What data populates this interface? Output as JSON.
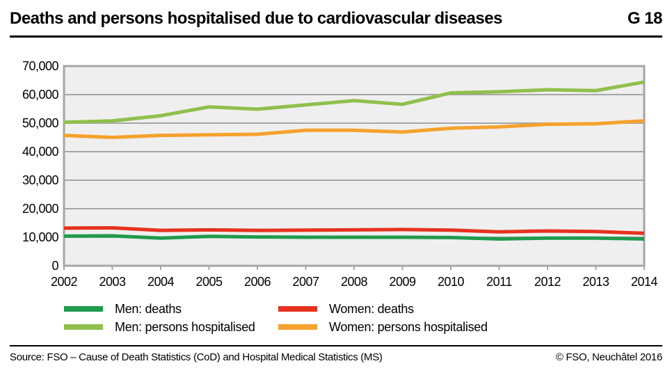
{
  "header": {
    "title": "Deaths and persons hospitalised due to cardiovascular diseases",
    "figure_code": "G 18"
  },
  "legend": {
    "items": [
      {
        "key": "men_deaths",
        "label": "Men: deaths"
      },
      {
        "key": "women_deaths",
        "label": "Women: deaths"
      },
      {
        "key": "men_hosp",
        "label": "Men: persons hospitalised"
      },
      {
        "key": "women_hosp",
        "label": "Women: persons hospitalised"
      }
    ]
  },
  "footer": {
    "source": "Source: FSO – Cause of Death Statistics (CoD) and Hospital Medical Statistics (MS)",
    "copyright": "© FSO, Neuchâtel 2016"
  },
  "chart_data": {
    "type": "line",
    "title": "Deaths and persons hospitalised due to cardiovascular diseases",
    "xlabel": "",
    "ylabel": "",
    "categories": [
      "2002",
      "2003",
      "2004",
      "2005",
      "2006",
      "2007",
      "2008",
      "2009",
      "2010",
      "2011",
      "2012",
      "2013",
      "2014"
    ],
    "series": [
      {
        "key": "men_hosp",
        "name": "Men: persons hospitalised",
        "color": "#8fc04c",
        "values": [
          50300,
          50800,
          52600,
          55700,
          54900,
          56400,
          57900,
          56600,
          60600,
          61000,
          61700,
          61400,
          64400
        ]
      },
      {
        "key": "women_hosp",
        "name": "Women: persons hospitalised",
        "color": "#f6a12d",
        "values": [
          45700,
          45000,
          45700,
          45900,
          46100,
          47500,
          47500,
          46900,
          48200,
          48700,
          49600,
          49800,
          50800
        ]
      },
      {
        "key": "women_deaths",
        "name": "Women: deaths",
        "color": "#e6321f",
        "values": [
          13200,
          13300,
          12400,
          12600,
          12400,
          12500,
          12600,
          12700,
          12500,
          11900,
          12200,
          12000,
          11400
        ]
      },
      {
        "key": "men_deaths",
        "name": "Men: deaths",
        "color": "#1f9b4d",
        "values": [
          10400,
          10500,
          9700,
          10300,
          10100,
          10000,
          10000,
          10000,
          9900,
          9400,
          9700,
          9700,
          9400
        ]
      }
    ],
    "ylim": [
      0,
      70000
    ],
    "ytick_step": 10000,
    "grid": true,
    "legend_position": "bottom",
    "plot_bg_color": "#efefef",
    "grid_color": "#a6a6a6"
  }
}
